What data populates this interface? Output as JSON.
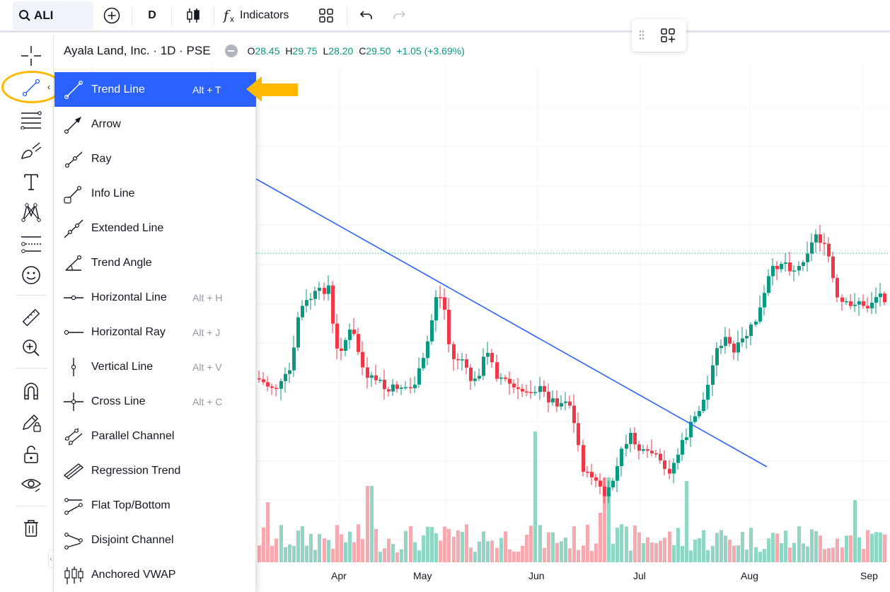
{
  "topbar": {
    "symbol": "ALI",
    "interval": "D",
    "indicators_label": "Indicators"
  },
  "legend": {
    "title": "Ayala Land, Inc. · 1D · PSE",
    "o_label": "O",
    "o_val": "28.45",
    "h_label": "H",
    "h_val": "29.75",
    "l_label": "L",
    "l_val": "28.20",
    "c_label": "C",
    "c_val": "29.50",
    "change": "+1.05 (+3.69%)"
  },
  "menu": {
    "items": [
      {
        "label": "Trend Line",
        "shortcut": "Alt + T",
        "icon": "trend-line-icon",
        "active": true
      },
      {
        "label": "Arrow",
        "shortcut": "",
        "icon": "arrow-icon"
      },
      {
        "label": "Ray",
        "shortcut": "",
        "icon": "ray-icon"
      },
      {
        "label": "Info Line",
        "shortcut": "",
        "icon": "info-line-icon"
      },
      {
        "label": "Extended Line",
        "shortcut": "",
        "icon": "extended-line-icon"
      },
      {
        "label": "Trend Angle",
        "shortcut": "",
        "icon": "trend-angle-icon"
      },
      {
        "label": "Horizontal Line",
        "shortcut": "Alt + H",
        "icon": "horizontal-line-icon"
      },
      {
        "label": "Horizontal Ray",
        "shortcut": "Alt + J",
        "icon": "horizontal-ray-icon"
      },
      {
        "label": "Vertical Line",
        "shortcut": "Alt + V",
        "icon": "vertical-line-icon"
      },
      {
        "label": "Cross Line",
        "shortcut": "Alt + C",
        "icon": "cross-line-icon"
      },
      {
        "label": "Parallel Channel",
        "shortcut": "",
        "icon": "parallel-channel-icon"
      },
      {
        "label": "Regression Trend",
        "shortcut": "",
        "icon": "regression-trend-icon"
      },
      {
        "label": "Flat Top/Bottom",
        "shortcut": "",
        "icon": "flat-top-bottom-icon"
      },
      {
        "label": "Disjoint Channel",
        "shortcut": "",
        "icon": "disjoint-channel-icon"
      },
      {
        "label": "Anchored VWAP",
        "shortcut": "",
        "icon": "anchored-vwap-icon"
      }
    ]
  },
  "xaxis": {
    "labels": [
      "Apr",
      "May",
      "Jun",
      "Jul",
      "Aug",
      "Sep"
    ]
  },
  "colors": {
    "up": "#089981",
    "down": "#f23645",
    "up_volume": "#8fd6c5",
    "down_volume": "#f7a9b0",
    "trend_line": "#2962ff",
    "highlight": "#ffb800",
    "accent": "#2962ff"
  },
  "chart_data": {
    "type": "candlestick",
    "symbol": "ALI",
    "interval": "1D",
    "exchange": "PSE",
    "last_ohlc": {
      "open": 28.45,
      "high": 29.75,
      "low": 28.2,
      "close": 29.5
    },
    "change": 1.05,
    "change_percent": 3.69,
    "x_labels": [
      "Apr",
      "May",
      "Jun",
      "Jul",
      "Aug",
      "Sep"
    ]
  }
}
